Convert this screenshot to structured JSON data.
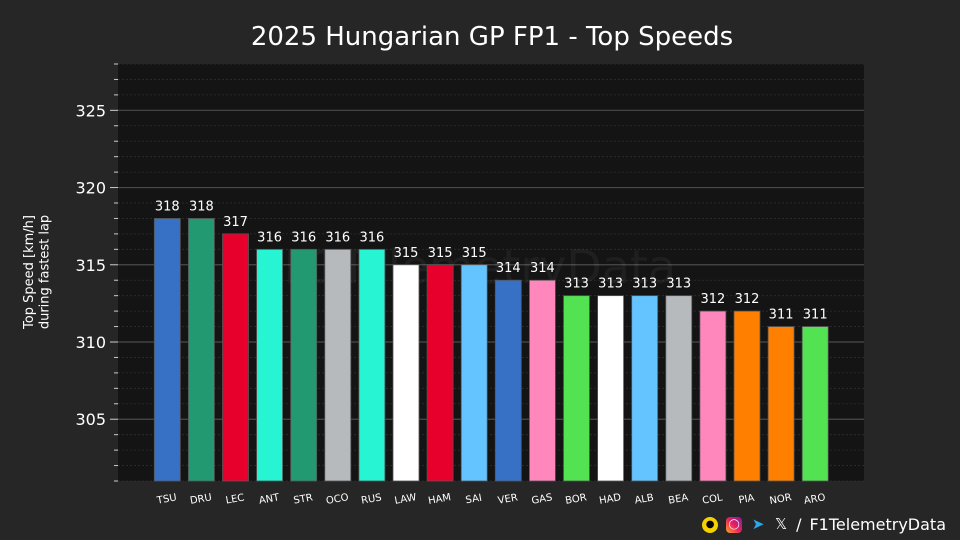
{
  "chart_data": {
    "type": "bar",
    "title": "2025 Hungarian GP FP1 - Top Speeds",
    "ylabel": "Top Speed [km/h]\nduring fastest lap",
    "xlabel": "",
    "ylim": [
      301,
      328
    ],
    "yticks": [
      305,
      310,
      315,
      320,
      325
    ],
    "grid": true,
    "watermark": "F1TelemetryData",
    "categories": [
      "TSU",
      "DRU",
      "LEC",
      "ANT",
      "STR",
      "OCO",
      "RUS",
      "LAW",
      "HAM",
      "SAI",
      "VER",
      "GAS",
      "BOR",
      "HAD",
      "ALB",
      "BEA",
      "COL",
      "PIA",
      "NOR",
      "ARO"
    ],
    "values": [
      318,
      318,
      317,
      316,
      316,
      316,
      316,
      315,
      315,
      315,
      314,
      314,
      313,
      313,
      313,
      313,
      312,
      312,
      311,
      311
    ],
    "colors": [
      "#3671C6",
      "#229971",
      "#E8002D",
      "#27F4D2",
      "#229971",
      "#B6BABD",
      "#27F4D2",
      "#FFFFFF",
      "#E8002D",
      "#64C4FF",
      "#3671C6",
      "#FF87BC",
      "#52E252",
      "#FFFFFF",
      "#64C4FF",
      "#B6BABD",
      "#FF87BC",
      "#FF8000",
      "#FF8000",
      "#52E252"
    ]
  },
  "footer": {
    "separator": "/",
    "handle": "F1TelemetryData",
    "icons": [
      "patreon-icon",
      "instagram-icon",
      "telegram-icon",
      "x-icon"
    ]
  }
}
